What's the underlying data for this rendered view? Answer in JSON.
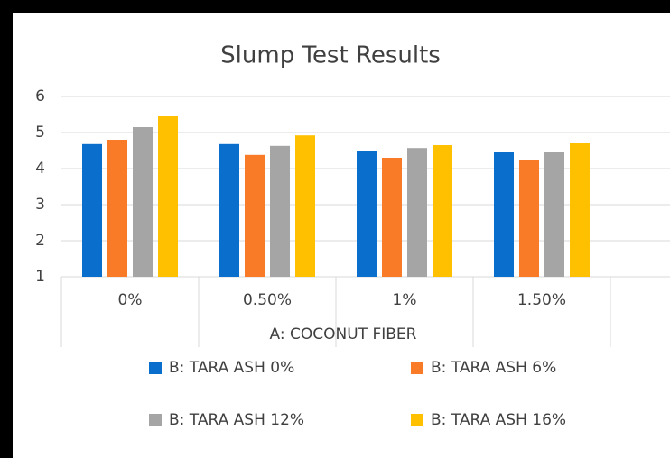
{
  "chart_data": {
    "type": "bar",
    "title": "Slump Test Results",
    "x_label": "A: COCONUT FIBER",
    "categories": [
      "0%",
      "0.50%",
      "1%",
      "1.50%"
    ],
    "series": [
      {
        "name": "B: TARA ASH 0%",
        "color": "#0a6ecd",
        "values": [
          4.68,
          4.68,
          4.5,
          4.45
        ]
      },
      {
        "name": "B: TARA ASH 6%",
        "color": "#f97a27",
        "values": [
          4.8,
          4.38,
          4.3,
          4.25
        ]
      },
      {
        "name": "B: TARA ASH 12%",
        "color": "#a5a5a5",
        "values": [
          5.15,
          4.63,
          4.57,
          4.45
        ]
      },
      {
        "name": "B: TARA ASH 16%",
        "color": "#ffc000",
        "values": [
          5.45,
          4.92,
          4.65,
          4.7
        ]
      }
    ],
    "ylim": [
      1,
      6
    ],
    "yticks": [
      1,
      2,
      3,
      4,
      5,
      6
    ],
    "grid": true,
    "legend": "bottom"
  }
}
